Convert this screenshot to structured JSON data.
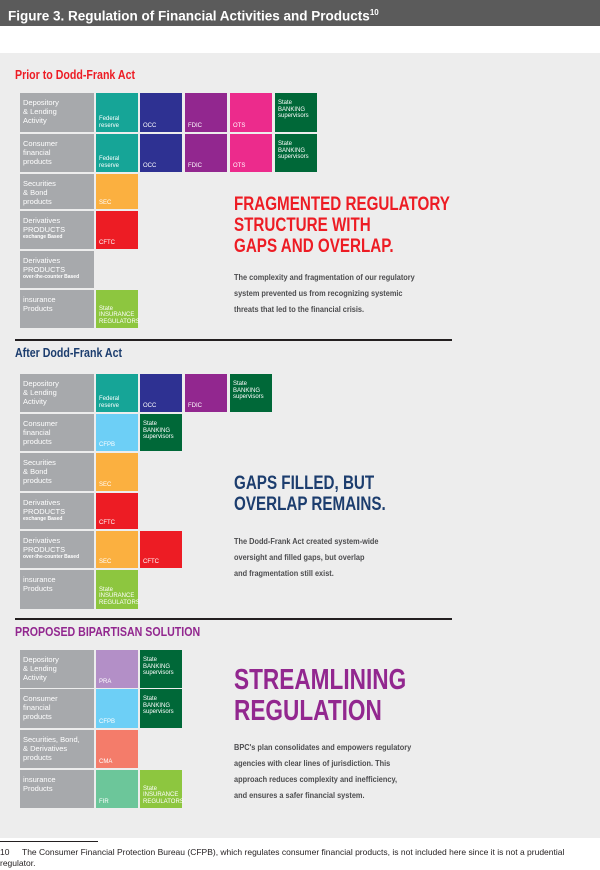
{
  "figure": {
    "title": "Figure 3. Regulation of Financial Activities and Products",
    "note_ref": "10"
  },
  "colors": {
    "federal_reserve": "#16a597",
    "occ": "#2e3192",
    "fdic": "#92278f",
    "ots": "#ec2b8c",
    "state_banking": "#006838",
    "sec": "#fbb040",
    "cftc": "#ed1c24",
    "cfpb": "#6dcff6",
    "state_insurance": "#8dc63f",
    "pra": "#b38fc7",
    "cma": "#f47c6a",
    "fir": "#6cc69a",
    "label_bg": "#a7a9ac",
    "panel_bg": "#ededed",
    "prior_title": "#ed1c24",
    "after_title": "#1c3d6e",
    "proposed_title": "#92278f"
  },
  "sections": [
    {
      "title": "Prior to Dodd-Frank Act",
      "headline": "FRAGMENTED REGULATORY\nSTRUCTURE WITH\nGAPS AND OVERLAP.",
      "body": "The complexity and fragmentation of our regulatory\nsystem prevented us from recognizing systemic\nthreats that led to the financial crisis.",
      "rows": [
        {
          "label": "Depository\n& Lending\nActivity",
          "sub": "",
          "agencies": [
            {
              "name": "Federal\nreserve",
              "color": "federal_reserve"
            },
            {
              "name": "OCC",
              "color": "occ"
            },
            {
              "name": "FDIC",
              "color": "fdic"
            },
            {
              "name": "OTS",
              "color": "ots"
            },
            {
              "name": "State\nBANKING\nsupervisors",
              "color": "state_banking",
              "top": true
            }
          ]
        },
        {
          "label": "Consumer\nfinancial\nproducts",
          "sub": "",
          "agencies": [
            {
              "name": "Federal\nreserve",
              "color": "federal_reserve"
            },
            {
              "name": "OCC",
              "color": "occ"
            },
            {
              "name": "FDIC",
              "color": "fdic"
            },
            {
              "name": "OTS",
              "color": "ots"
            },
            {
              "name": "State\nBANKING\nsupervisors",
              "color": "state_banking",
              "top": true
            }
          ]
        },
        {
          "label": "Securities\n& Bond\nproducts",
          "sub": "",
          "agencies": [
            {
              "name": "SEC",
              "color": "sec"
            }
          ]
        },
        {
          "label": "Derivatives\nPRODUCTS",
          "sub": "exchange Based",
          "agencies": [
            {
              "name": "CFTC",
              "color": "cftc"
            }
          ]
        },
        {
          "label": "Derivatives\nPRODUCTS",
          "sub": "over-the-counter Based",
          "agencies": []
        },
        {
          "label": "insurance\nProducts",
          "sub": "",
          "agencies": [
            {
              "name": "State\nINSURANCE\nREGULATORS",
              "color": "state_insurance"
            }
          ]
        }
      ]
    },
    {
      "title": "After Dodd-Frank Act",
      "headline": "GAPS FILLED, BUT\nOVERLAP REMAINS.",
      "body": "The Dodd-Frank Act created system-wide\noversight and filled gaps, but overlap\nand fragmentation still exist.",
      "rows": [
        {
          "label": "Depository\n& Lending\nActivity",
          "sub": "",
          "agencies": [
            {
              "name": "Federal\nreserve",
              "color": "federal_reserve"
            },
            {
              "name": "OCC",
              "color": "occ"
            },
            {
              "name": "FDIC",
              "color": "fdic"
            },
            {
              "name": "State\nBANKING\nsupervisors",
              "color": "state_banking",
              "top": true
            }
          ]
        },
        {
          "label": "Consumer\nfinancial\nproducts",
          "sub": "",
          "agencies": [
            {
              "name": "CFPB",
              "color": "cfpb"
            },
            {
              "name": "State\nBANKING\nsupervisors",
              "color": "state_banking",
              "top": true
            }
          ]
        },
        {
          "label": "Securities\n& Bond\nproducts",
          "sub": "",
          "agencies": [
            {
              "name": "SEC",
              "color": "sec"
            }
          ]
        },
        {
          "label": "Derivatives\nPRODUCTS",
          "sub": "exchange Based",
          "agencies": [
            {
              "name": "CFTC",
              "color": "cftc"
            }
          ]
        },
        {
          "label": "Derivatives\nPRODUCTS",
          "sub": "over-the-counter Based",
          "agencies": [
            {
              "name": "SEC",
              "color": "sec"
            },
            {
              "name": "CFTC",
              "color": "cftc"
            }
          ]
        },
        {
          "label": "insurance\nProducts",
          "sub": "",
          "agencies": [
            {
              "name": "State\nINSURANCE\nREGULATORS",
              "color": "state_insurance"
            }
          ]
        }
      ]
    },
    {
      "title": "PROPOSED BIPARTISAN SOLUTION",
      "headline": "STREAMLINING\nREGULATION",
      "body": "BPC's plan consolidates and empowers regulatory\nagencies with clear lines of jurisdiction. This\napproach reduces complexity and inefficiency,\nand ensures a safer financial system.",
      "rows": [
        {
          "label": "Depository\n& Lending\nActivity",
          "sub": "",
          "agencies": [
            {
              "name": "PRA",
              "color": "pra"
            },
            {
              "name": "State\nBANKING\nsupervisors",
              "color": "state_banking",
              "top": true
            }
          ]
        },
        {
          "label": "Consumer\nfinancial\nproducts",
          "sub": "",
          "agencies": [
            {
              "name": "CFPB",
              "color": "cfpb"
            },
            {
              "name": "State\nBANKING\nsupervisors",
              "color": "state_banking",
              "top": true
            }
          ]
        },
        {
          "label": "Securities, Bond,\n& Derivatives\nproducts",
          "sub": "",
          "agencies": [
            {
              "name": "CMA",
              "color": "cma"
            }
          ]
        },
        {
          "label": "insurance\nProducts",
          "sub": "",
          "agencies": [
            {
              "name": "FIR",
              "color": "fir"
            },
            {
              "name": "State\nINSURANCE\nREGULATORS",
              "color": "state_insurance"
            }
          ]
        }
      ]
    }
  ],
  "footnote": {
    "number": "10",
    "text": "The Consumer Financial Protection Bureau (CFPB), which regulates consumer financial products, is not included here since it is not a prudential regulator."
  }
}
